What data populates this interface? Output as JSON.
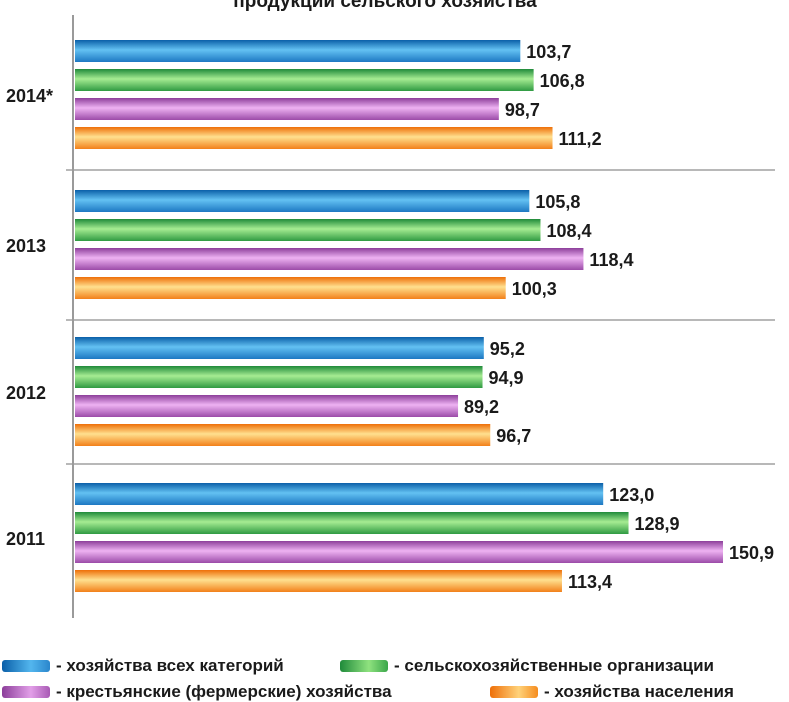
{
  "chart_data": {
    "type": "bar",
    "orientation": "horizontal",
    "title": "продукции сельского хозяйства",
    "categories": [
      "2014*",
      "2013",
      "2012",
      "2011"
    ],
    "series": [
      {
        "name": "- хозяйства всех категорий",
        "color": "#2a86cc",
        "values": [
          103.7,
          105.8,
          95.2,
          123.0
        ],
        "labels": [
          "103,7",
          "105,8",
          "95,2",
          "123,0"
        ]
      },
      {
        "name": "- сельскохозяйственные организации",
        "color": "#3aa64a",
        "values": [
          106.8,
          108.4,
          94.9,
          128.9
        ],
        "labels": [
          "106,8",
          "108,4",
          "94,9",
          "128,9"
        ]
      },
      {
        "name": "- крестьянские (фермерские) хозяйства",
        "color": "#a85ab4",
        "values": [
          98.7,
          118.4,
          89.2,
          150.9
        ],
        "labels": [
          "98,7",
          "118,4",
          "89,2",
          "150,9"
        ]
      },
      {
        "name": "- хозяйства населения",
        "color": "#f58c1e",
        "values": [
          111.2,
          100.3,
          96.7,
          113.4
        ],
        "labels": [
          "111,2",
          "100,3",
          "96,7",
          "113,4"
        ]
      }
    ],
    "xlim": [
      0,
      155
    ],
    "grid": false,
    "legend_position": "bottom"
  }
}
